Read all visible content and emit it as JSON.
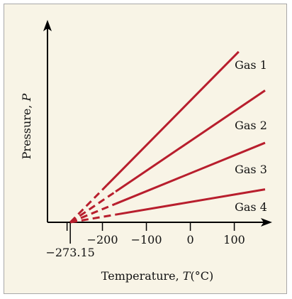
{
  "chart_data": {
    "type": "line",
    "title": "",
    "xlabel": "Temperature, ",
    "xlabel_symbol": "T",
    "xlabel_unit": "(°C)",
    "ylabel": "Pressure, ",
    "ylabel_symbol": "P",
    "x_ticks": [
      -200,
      -100,
      0,
      100
    ],
    "x_tick_labels": [
      "−200",
      "−100",
      "0",
      "100"
    ],
    "extra_tick": {
      "value": -273.15,
      "label": "−273.15"
    },
    "xlim": [
      -325,
      170
    ],
    "ylim": [
      0,
      100
    ],
    "extrapolation_start": -273.15,
    "series": [
      {
        "name": "Gas 1",
        "dashed_until": -190,
        "end": {
          "x": 110,
          "y": 88
        }
      },
      {
        "name": "Gas 2",
        "dashed_until": -170,
        "end": {
          "x": 170,
          "y": 68
        }
      },
      {
        "name": "Gas 3",
        "dashed_until": -170,
        "end": {
          "x": 170,
          "y": 41
        }
      },
      {
        "name": "Gas 4",
        "dashed_until": -170,
        "end": {
          "x": 170,
          "y": 17
        }
      }
    ],
    "line_color": "#b81e2d",
    "axis_color": "#000000",
    "background_color": "#f8f4e6"
  }
}
